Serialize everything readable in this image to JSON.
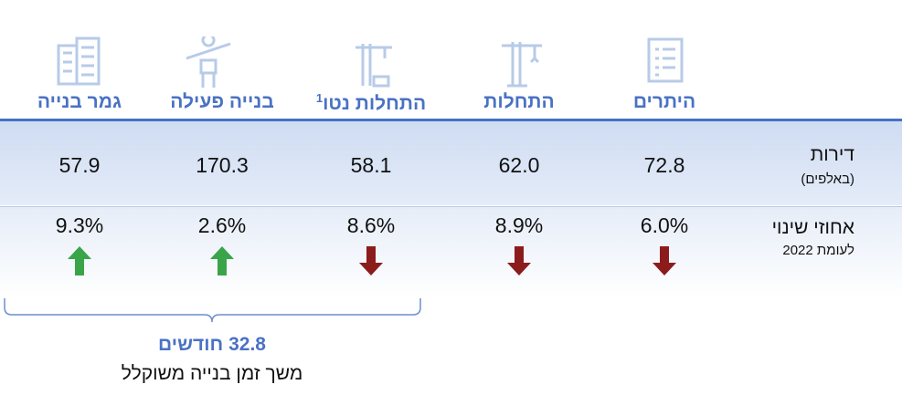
{
  "columns": [
    {
      "header": {
        "label": "היתרים"
      },
      "units": "72.8",
      "change": {
        "value": "6.0%",
        "direction": "down"
      }
    },
    {
      "header": {
        "label": "התחלות"
      },
      "units": "62.0",
      "change": {
        "value": "8.9%",
        "direction": "down"
      }
    },
    {
      "header": {
        "label": "התחלות נטו",
        "note": "1"
      },
      "units": "58.1",
      "change": {
        "value": "8.6%",
        "direction": "down"
      }
    },
    {
      "header": {
        "label": "בנייה פעילה"
      },
      "units": "170.3",
      "change": {
        "value": "2.6%",
        "direction": "up"
      }
    },
    {
      "header": {
        "label": "גמר בנייה"
      },
      "units": "57.9",
      "change": {
        "value": "9.3%",
        "direction": "up"
      }
    }
  ],
  "rows": {
    "units": {
      "label": "דירות",
      "sublabel": "(באלפים)"
    },
    "change": {
      "label": "אחוזי שינוי",
      "sublabel": "לעומת 2022"
    }
  },
  "arrow_colors": {
    "up": "#3aa548",
    "down": "#8c1c1c"
  },
  "bracket": {
    "value": "32.8 חודשים",
    "caption": "משך זמן בנייה משוקלל"
  }
}
